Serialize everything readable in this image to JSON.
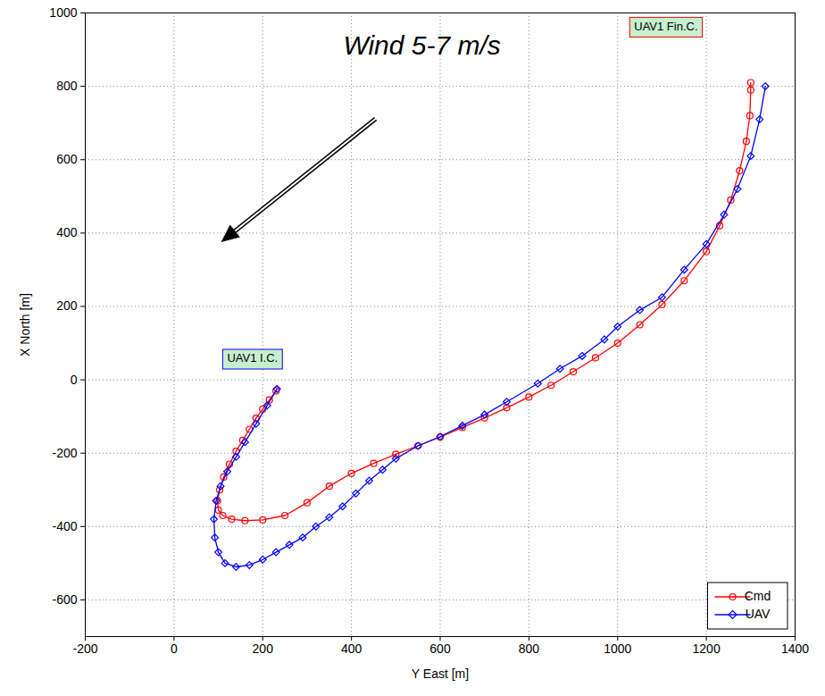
{
  "chart_data": {
    "type": "line",
    "x_label": "Y East [m]",
    "y_label": "X North [m]",
    "xlim": [
      -200,
      1400
    ],
    "xticks": [
      -200,
      0,
      200,
      400,
      600,
      800,
      1000,
      1200,
      1400
    ],
    "ylim": [
      -700,
      1000
    ],
    "yticks": [
      -600,
      -400,
      -200,
      0,
      200,
      400,
      600,
      800,
      1000
    ],
    "grid": true,
    "legend": "bottom-right",
    "series": [
      {
        "name": "Cmd",
        "color": "#ff0000",
        "marker": "circle",
        "line_style": "solid",
        "x": [
          230,
          215,
          200,
          185,
          170,
          155,
          140,
          125,
          112,
          103,
          98,
          100,
          110,
          130,
          160,
          200,
          250,
          300,
          350,
          400,
          450,
          500,
          550,
          600,
          650,
          700,
          750,
          800,
          850,
          900,
          950,
          1000,
          1050,
          1100,
          1150,
          1200,
          1230,
          1255,
          1275,
          1290,
          1298,
          1300,
          1300
        ],
        "values": [
          -30,
          -55,
          -80,
          -105,
          -135,
          -165,
          -195,
          -230,
          -265,
          -300,
          -330,
          -355,
          -370,
          -380,
          -384,
          -382,
          -370,
          -335,
          -290,
          -255,
          -228,
          -203,
          -180,
          -156,
          -130,
          -104,
          -76,
          -47,
          -15,
          22,
          60,
          100,
          150,
          205,
          270,
          350,
          420,
          490,
          570,
          650,
          720,
          790,
          810
        ]
      },
      {
        "name": "UAV",
        "color": "#0000ff",
        "marker": "diamond",
        "line_style": "solid",
        "x": [
          232,
          210,
          185,
          160,
          140,
          120,
          105,
          95,
          90,
          92,
          100,
          115,
          140,
          170,
          200,
          230,
          260,
          290,
          320,
          350,
          380,
          410,
          440,
          470,
          500,
          550,
          600,
          650,
          700,
          750,
          820,
          870,
          920,
          970,
          1000,
          1050,
          1100,
          1150,
          1200,
          1240,
          1270,
          1300,
          1320,
          1333
        ],
        "values": [
          -25,
          -70,
          -120,
          -170,
          -210,
          -250,
          -290,
          -330,
          -380,
          -430,
          -470,
          -500,
          -510,
          -505,
          -490,
          -470,
          -450,
          -430,
          -400,
          -375,
          -345,
          -310,
          -275,
          -245,
          -215,
          -180,
          -155,
          -125,
          -95,
          -60,
          -10,
          30,
          65,
          110,
          145,
          190,
          225,
          300,
          370,
          450,
          520,
          610,
          710,
          800
        ]
      }
    ],
    "annotations": [
      {
        "text": "Wind 5-7 m/s",
        "x": 560,
        "y": 905
      },
      {
        "text": "UAV1 Fin.C.",
        "x": 1110,
        "y": 960
      },
      {
        "text": "UAV1 I.C.",
        "x": 178,
        "y": 55
      }
    ]
  }
}
